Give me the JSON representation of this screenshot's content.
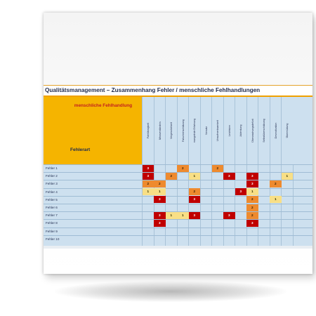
{
  "title": "Qualitätsmanagement – Zusammenhang Fehler / menschliche Fehlhandlungen",
  "header": {
    "top_label": "menschliche Fehlhandlung",
    "bottom_label": "Fehlerart"
  },
  "columns": [
    "Fahrlässigkeit",
    "Missverständnis",
    "Vergesslichkeit",
    "Falscheinschätzung",
    "mangelnde Erfahrung",
    "Vorsatz",
    "Unaufmerksamkeit",
    "Leichtsinn",
    "Ablenkung",
    "Überwachungsdefizit",
    "Selbstüberschätzung",
    "Desmotivation",
    "Übermüdung"
  ],
  "rows": [
    "Fehler 1",
    "Fehler 2",
    "Fehler 3",
    "Fehler 4",
    "Fehler 5",
    "Fehler 6",
    "Fehler 7",
    "Fehler 8",
    "Fehler 9",
    "Fehler 10"
  ],
  "cells": [
    {
      "r": 0,
      "c": 0,
      "v": "3"
    },
    {
      "r": 0,
      "c": 3,
      "v": "2"
    },
    {
      "r": 0,
      "c": 6,
      "v": "2"
    },
    {
      "r": 1,
      "c": 0,
      "v": "3"
    },
    {
      "r": 1,
      "c": 2,
      "v": "2"
    },
    {
      "r": 1,
      "c": 4,
      "v": "1"
    },
    {
      "r": 1,
      "c": 7,
      "v": "3"
    },
    {
      "r": 1,
      "c": 9,
      "v": "3"
    },
    {
      "r": 1,
      "c": 12,
      "v": "1"
    },
    {
      "r": 2,
      "c": 0,
      "v": "2"
    },
    {
      "r": 2,
      "c": 1,
      "v": "2"
    },
    {
      "r": 2,
      "c": 9,
      "v": "3"
    },
    {
      "r": 2,
      "c": 11,
      "v": "2"
    },
    {
      "r": 3,
      "c": 0,
      "v": "1"
    },
    {
      "r": 3,
      "c": 1,
      "v": "1"
    },
    {
      "r": 3,
      "c": 4,
      "v": "2"
    },
    {
      "r": 3,
      "c": 8,
      "v": "3"
    },
    {
      "r": 3,
      "c": 9,
      "v": "1"
    },
    {
      "r": 4,
      "c": 1,
      "v": "3"
    },
    {
      "r": 4,
      "c": 4,
      "v": "3"
    },
    {
      "r": 4,
      "c": 9,
      "v": "2"
    },
    {
      "r": 4,
      "c": 11,
      "v": "1"
    },
    {
      "r": 5,
      "c": 9,
      "v": "2"
    },
    {
      "r": 6,
      "c": 1,
      "v": "3"
    },
    {
      "r": 6,
      "c": 2,
      "v": "1"
    },
    {
      "r": 6,
      "c": 3,
      "v": "1"
    },
    {
      "r": 6,
      "c": 4,
      "v": "3"
    },
    {
      "r": 6,
      "c": 7,
      "v": "3"
    },
    {
      "r": 6,
      "c": 9,
      "v": "2"
    },
    {
      "r": 7,
      "c": 1,
      "v": "3"
    },
    {
      "r": 7,
      "c": 9,
      "v": "3"
    }
  ],
  "colors": {
    "level_3": "#c00000",
    "level_2": "#ee8a2e",
    "level_1": "#f8df86",
    "grid": "#cde0ef",
    "header": "#f5b400"
  }
}
